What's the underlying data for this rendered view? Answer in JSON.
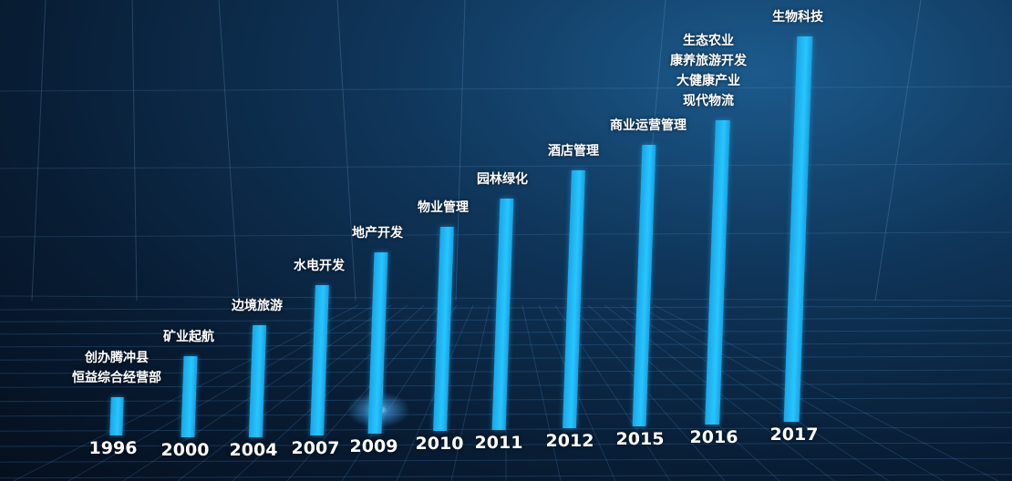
{
  "chart_data": {
    "type": "bar",
    "categories": [
      "1996",
      "2000",
      "2004",
      "2007",
      "2009",
      "2010",
      "2011",
      "2012",
      "2015",
      "2016",
      "2017"
    ],
    "values": [
      10,
      21,
      29,
      39,
      47,
      53,
      60,
      67,
      73,
      79,
      100
    ],
    "value_note_unit": "relative bar height (% of tallest)",
    "annotations": [
      [
        "创办腾冲县",
        "恒益综合经营部"
      ],
      [
        "矿业起航"
      ],
      [
        "边境旅游"
      ],
      [
        "水电开发"
      ],
      [
        "地产开发"
      ],
      [
        "物业管理"
      ],
      [
        "园林绿化"
      ],
      [
        "酒店管理"
      ],
      [
        "商业运营管理"
      ],
      [
        "生态农业",
        "康养旅游开发",
        "大健康产业",
        "现代物流"
      ],
      [
        "生物科技"
      ]
    ],
    "bar_color": "#22b8f5",
    "background_color": "#0c2a48",
    "grid": true
  }
}
